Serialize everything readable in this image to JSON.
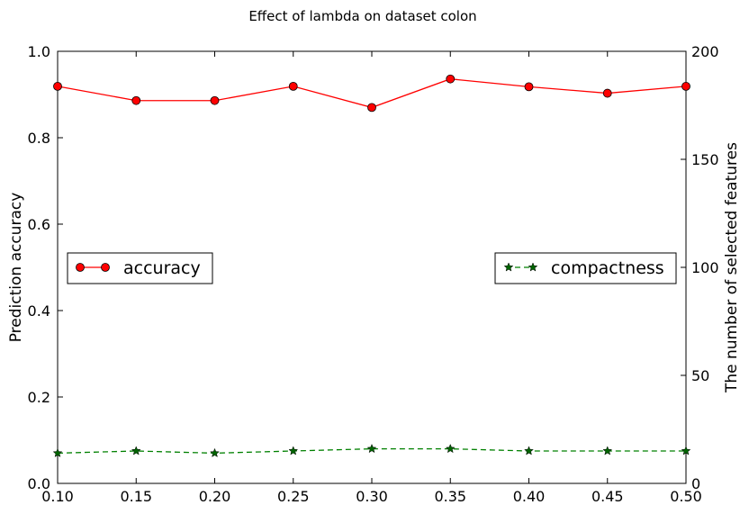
{
  "chart_data": {
    "type": "line",
    "title": "Effect of lambda on dataset colon",
    "xlabel": "",
    "ylabel_left": "Prediction accuracy",
    "ylabel_right": "The number of selected features",
    "x": [
      0.1,
      0.15,
      0.2,
      0.25,
      0.3,
      0.35,
      0.4,
      0.45,
      0.5
    ],
    "xlim": [
      0.1,
      0.5
    ],
    "xticks": [
      "0.10",
      "0.15",
      "0.20",
      "0.25",
      "0.30",
      "0.35",
      "0.40",
      "0.45",
      "0.50"
    ],
    "ylim_left": [
      0.0,
      1.0
    ],
    "yticks_left": [
      "0.0",
      "0.2",
      "0.4",
      "0.6",
      "0.8",
      "1.0"
    ],
    "ylim_right": [
      0,
      200
    ],
    "yticks_right": [
      "0",
      "50",
      "100",
      "150",
      "200"
    ],
    "grid": false,
    "series": [
      {
        "name": "accuracy",
        "axis": "left",
        "values": [
          0.919,
          0.886,
          0.886,
          0.919,
          0.87,
          0.936,
          0.918,
          0.903,
          0.919
        ],
        "color": "#ff0000",
        "marker": "circle",
        "linestyle": "solid",
        "legend_position": "center-left"
      },
      {
        "name": "compactness",
        "axis": "right",
        "values": [
          14,
          15,
          14,
          15,
          16,
          16,
          15,
          15,
          15
        ],
        "color": "#008000",
        "marker": "star",
        "linestyle": "dashed",
        "legend_position": "center-right"
      }
    ]
  }
}
